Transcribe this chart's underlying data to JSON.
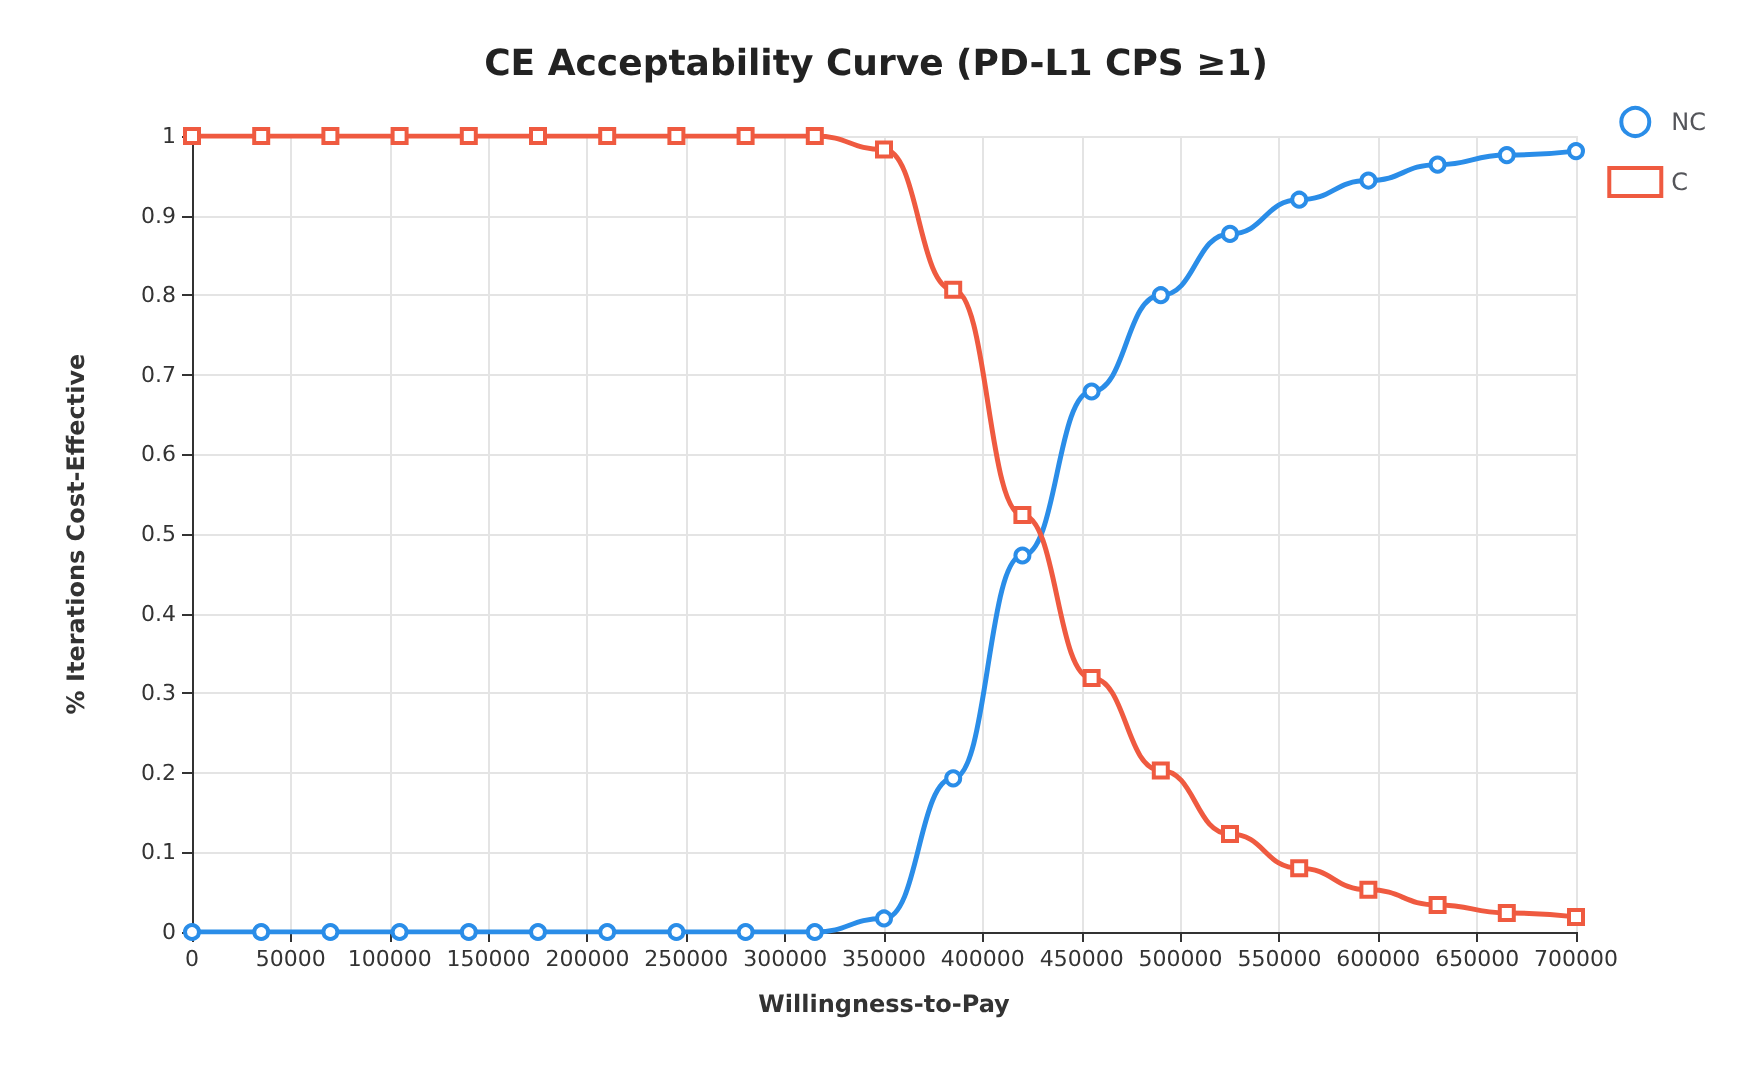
{
  "chart_data": {
    "type": "line",
    "title": "CE Acceptability Curve (PD-L1 CPS ≥1)",
    "xlabel": "Willingness-to-Pay",
    "ylabel": "% Iterations Cost-Effective",
    "x": [
      0,
      35000,
      70000,
      105000,
      140000,
      175000,
      210000,
      245000,
      280000,
      315000,
      350000,
      385000,
      420000,
      455000,
      490000,
      525000,
      560000,
      595000,
      630000,
      665000,
      700000
    ],
    "series": [
      {
        "name": "NC",
        "color": "#2a8de8",
        "marker": "circle",
        "values": [
          0,
          0,
          0,
          0,
          0,
          0,
          0,
          0,
          0,
          0,
          0.017,
          0.193,
          0.473,
          0.679,
          0.8,
          0.877,
          0.92,
          0.944,
          0.964,
          0.976,
          0.981
        ]
      },
      {
        "name": "C",
        "color": "#ef5a40",
        "marker": "square",
        "values": [
          1,
          1,
          1,
          1,
          1,
          1,
          1,
          1,
          1,
          1,
          0.983,
          0.807,
          0.524,
          0.319,
          0.203,
          0.123,
          0.08,
          0.053,
          0.034,
          0.024,
          0.019
        ]
      }
    ],
    "xlim": [
      0,
      700000
    ],
    "xticks": [
      0,
      50000,
      100000,
      150000,
      200000,
      250000,
      300000,
      350000,
      400000,
      450000,
      500000,
      550000,
      600000,
      650000,
      700000
    ],
    "ylim": [
      0,
      1
    ],
    "yticks": [
      0,
      0.1,
      0.2,
      0.3,
      0.4,
      0.5,
      0.6,
      0.7,
      0.8,
      0.9,
      1
    ],
    "grid": true,
    "legend": "top right",
    "line_style": "solid"
  }
}
